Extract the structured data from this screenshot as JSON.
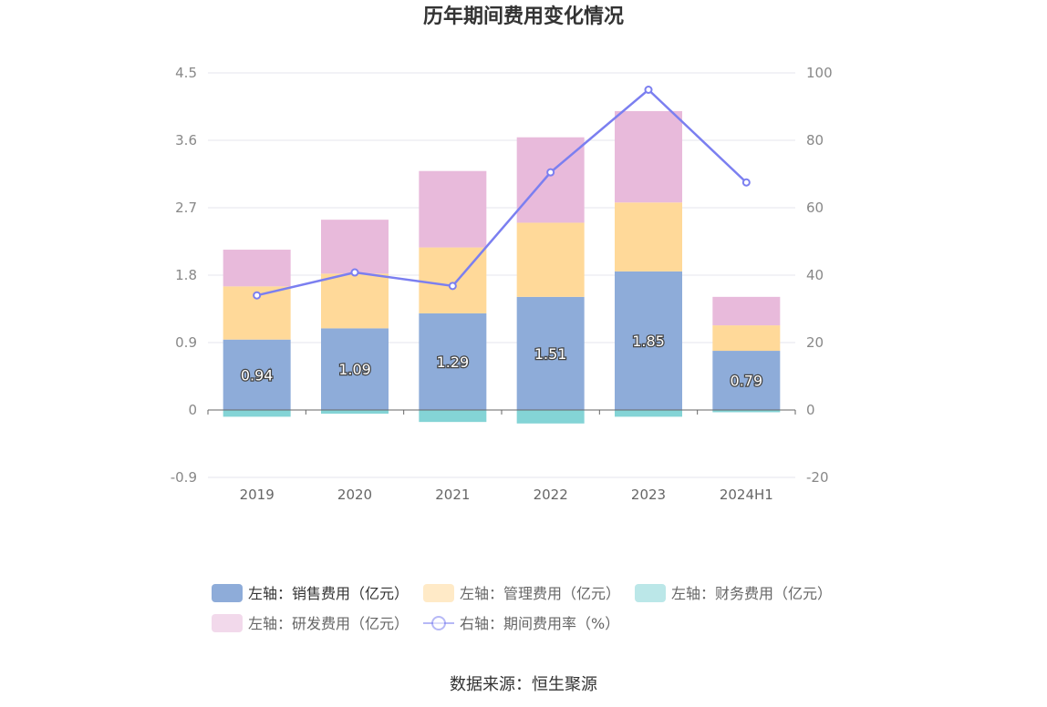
{
  "chart_data": {
    "type": "bar",
    "title": "历年期间费用变化情况",
    "categories": [
      "2019",
      "2020",
      "2021",
      "2022",
      "2023",
      "2024H1"
    ],
    "stacked": true,
    "series": [
      {
        "name": "左轴：销售费用（亿元）",
        "axis": "left",
        "color": "#8eacd9",
        "values": [
          0.94,
          1.09,
          1.29,
          1.51,
          1.85,
          0.79
        ],
        "labels": [
          "0.94",
          "1.09",
          "1.29",
          "1.51",
          "1.85",
          "0.79"
        ]
      },
      {
        "name": "左轴：管理费用（亿元）",
        "axis": "left",
        "color": "#ffd999",
        "values": [
          0.71,
          0.73,
          0.88,
          0.99,
          0.92,
          0.34
        ]
      },
      {
        "name": "左轴：财务费用（亿元）",
        "axis": "left",
        "color": "#84d4d6",
        "values": [
          -0.09,
          -0.05,
          -0.16,
          -0.18,
          -0.09,
          -0.03
        ]
      },
      {
        "name": "左轴：研发费用（亿元）",
        "axis": "left",
        "color": "#e8badb",
        "values": [
          0.49,
          0.72,
          1.02,
          1.14,
          1.22,
          0.38
        ]
      },
      {
        "name": "右轴：期间费用率（%）",
        "axis": "right",
        "type": "line",
        "color": "#7b7ff0",
        "values": [
          34,
          40.8,
          36.8,
          70.5,
          95,
          67.5
        ]
      }
    ],
    "left_axis": {
      "min": -0.9,
      "max": 4.5,
      "ticks": [
        "-0.9",
        "0",
        "0.9",
        "1.8",
        "2.7",
        "3.6",
        "4.5"
      ]
    },
    "right_axis": {
      "min": -20,
      "max": 100,
      "ticks": [
        "-20",
        "0",
        "20",
        "40",
        "60",
        "80",
        "100"
      ]
    },
    "legend_position": "bottom",
    "grid": true
  },
  "source": "数据来源：恒生聚源"
}
